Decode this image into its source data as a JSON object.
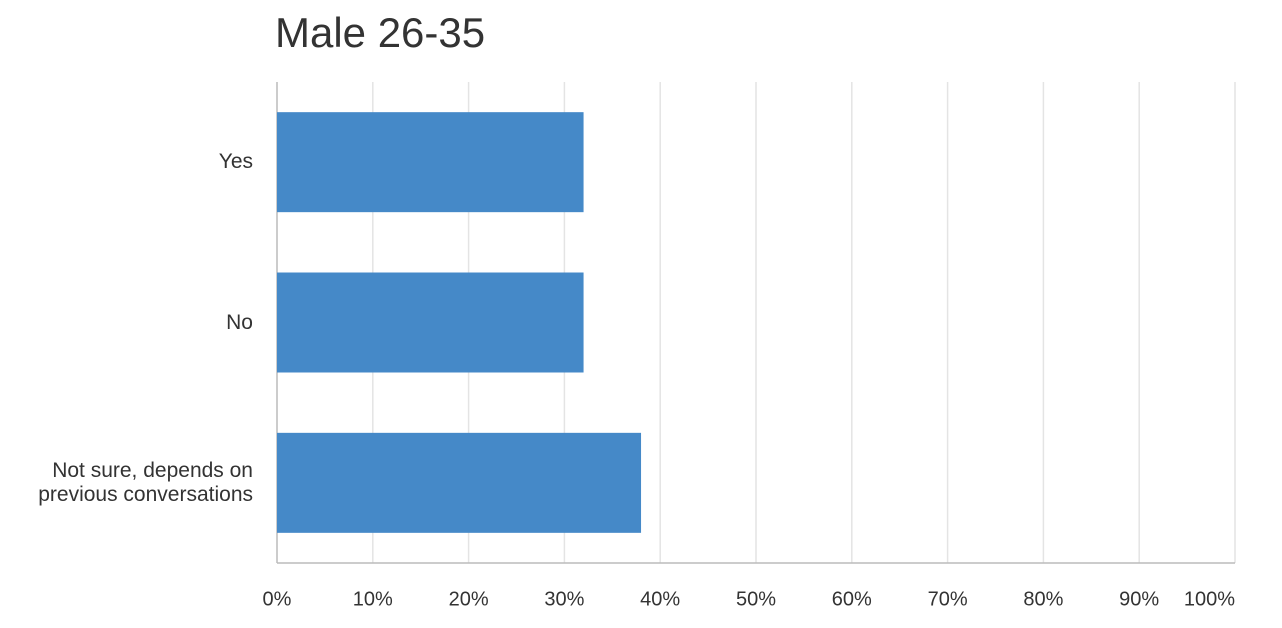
{
  "chart_data": {
    "type": "bar",
    "orientation": "horizontal",
    "title": "Male 26-35",
    "categories": [
      "Yes",
      "No",
      "Not sure, depends on\nprevious conversations"
    ],
    "values": [
      32,
      32,
      38
    ],
    "color": "#4589c8",
    "xlim": [
      0,
      100
    ],
    "xticks": [
      {
        "value": 0,
        "label": "0%"
      },
      {
        "value": 10,
        "label": "10%"
      },
      {
        "value": 20,
        "label": "20%"
      },
      {
        "value": 30,
        "label": "30%"
      },
      {
        "value": 40,
        "label": "40%"
      },
      {
        "value": 50,
        "label": "50%"
      },
      {
        "value": 60,
        "label": "60%"
      },
      {
        "value": 70,
        "label": "70%"
      },
      {
        "value": 80,
        "label": "80%"
      },
      {
        "value": 90,
        "label": "90%"
      },
      {
        "value": 100,
        "label": "100%"
      }
    ],
    "grid": true
  }
}
